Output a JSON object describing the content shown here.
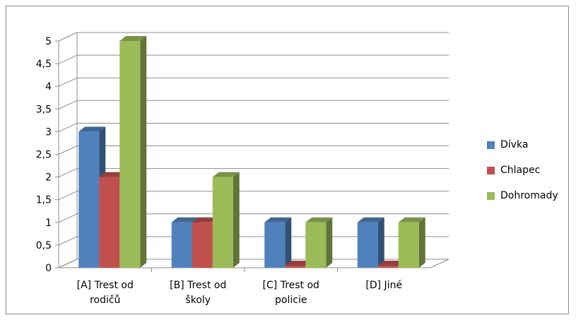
{
  "chart_data": {
    "type": "bar",
    "title": "",
    "xlabel": "",
    "ylabel": "",
    "categories": [
      [
        "[A] Trest od",
        "rodičů"
      ],
      [
        "[B] Trest od",
        "školy"
      ],
      [
        "[C] Trest od",
        "policie"
      ],
      [
        "[D] Jiné"
      ]
    ],
    "series": [
      {
        "name": "Dívka",
        "values": [
          3,
          1,
          1,
          1
        ],
        "color": "#4f81bd"
      },
      {
        "name": "Chlapec",
        "values": [
          2,
          1,
          0,
          0
        ],
        "color": "#c0504d"
      },
      {
        "name": "Dohromady",
        "values": [
          5,
          2,
          1,
          1
        ],
        "color": "#9bbb59"
      }
    ],
    "ylim": [
      0,
      5
    ],
    "yticks": [
      "0",
      "0,5",
      "1",
      "1,5",
      "2",
      "2,5",
      "3",
      "3,5",
      "4",
      "4,5",
      "5"
    ],
    "grid": true,
    "legend_position": "right",
    "style": "3d-clustered-column"
  }
}
